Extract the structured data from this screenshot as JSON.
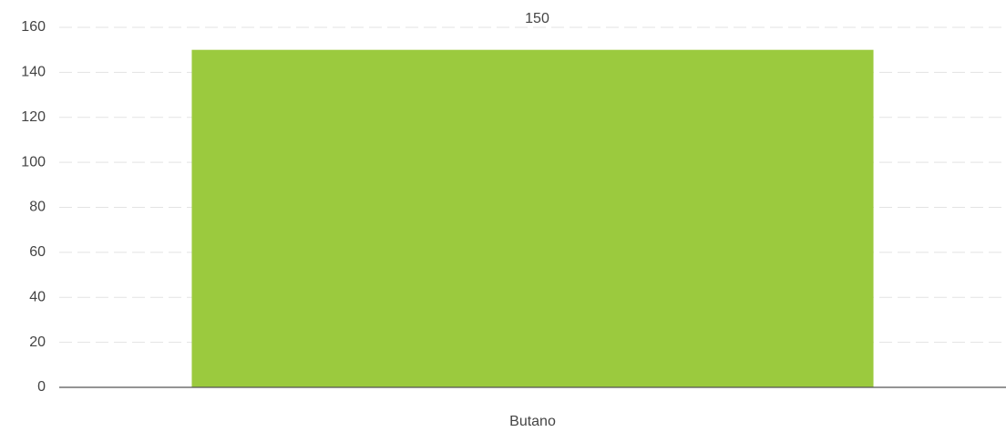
{
  "chart_data": {
    "type": "bar",
    "categories": [
      "Butano"
    ],
    "values": [
      150
    ],
    "color": "#9bca3e",
    "ylim": [
      0,
      160
    ],
    "yticks": [
      0,
      20,
      40,
      60,
      80,
      100,
      120,
      140,
      160
    ],
    "grid": true
  }
}
